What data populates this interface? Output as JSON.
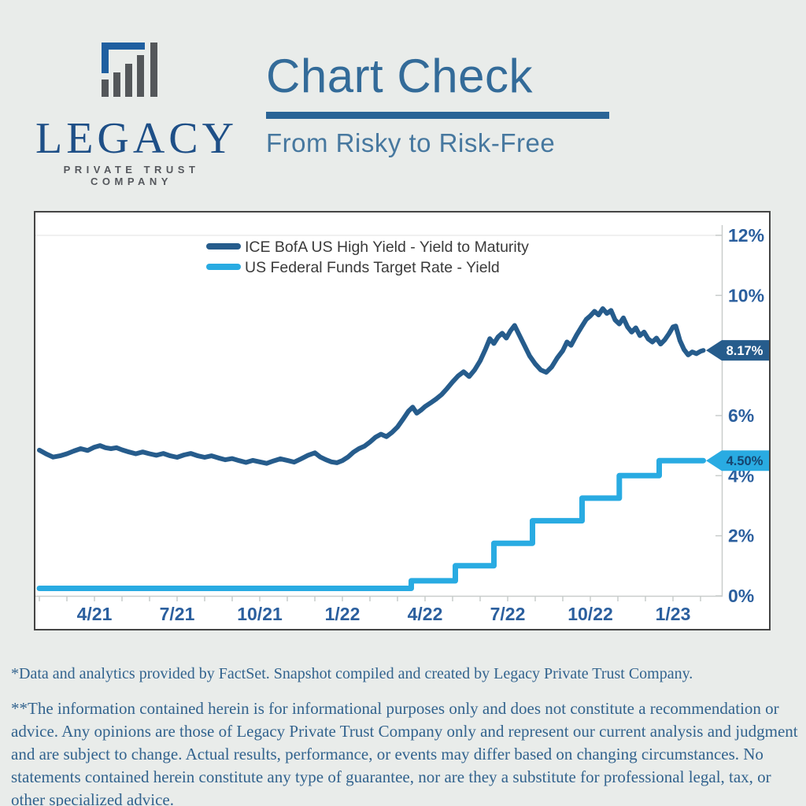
{
  "page": {
    "background": "#e9ecea"
  },
  "brand": {
    "company": "LEGACY",
    "tagline": "PRIVATE TRUST COMPANY",
    "colors": {
      "logo_blue": "#1f5fa0",
      "logo_gray": "#54575a",
      "wordmark_blue": "#1e4f87",
      "tagline_gray": "#55585d"
    }
  },
  "header": {
    "title": "Chart Check",
    "subtitle": "From Risky to Risk-Free",
    "title_color": "#336b99",
    "rule_color": "#2a6496",
    "subtitle_color": "#47789f"
  },
  "chart_data": {
    "type": "line",
    "title": "",
    "grid": false,
    "legend_position": "top-center-inside",
    "axis_label_color": "#2b5f9e",
    "axis_line_color": "#c9cdcc",
    "legend_text_color": "#3a3a3a",
    "x_axis": {
      "unit": "months since 2021-02-01",
      "range": [
        0,
        24.8
      ],
      "major_ticks": [
        {
          "t": 2,
          "label": "4/21"
        },
        {
          "t": 5,
          "label": "7/21"
        },
        {
          "t": 8,
          "label": "10/21"
        },
        {
          "t": 11,
          "label": "1/22"
        },
        {
          "t": 14,
          "label": "4/22"
        },
        {
          "t": 17,
          "label": "7/22"
        },
        {
          "t": 20,
          "label": "10/22"
        },
        {
          "t": 23,
          "label": "1/23"
        }
      ],
      "minor_tick_every_months": 1
    },
    "y_axis": {
      "range": [
        0,
        12.3
      ],
      "tick_values": [
        0,
        2,
        4,
        6,
        8,
        10,
        12
      ],
      "tick_labels": [
        "0%",
        "2%",
        "4%",
        "6%",
        "",
        "10%",
        "12%"
      ],
      "note": "8% label hidden behind the 8.17% callout"
    },
    "series": [
      {
        "name": "ICE BofA US High Yield - Yield to Maturity",
        "color": "#265c8c",
        "stroke_width": 6,
        "points": [
          [
            0,
            4.85
          ],
          [
            0.25,
            4.72
          ],
          [
            0.5,
            4.62
          ],
          [
            0.75,
            4.66
          ],
          [
            1,
            4.73
          ],
          [
            1.25,
            4.82
          ],
          [
            1.5,
            4.9
          ],
          [
            1.75,
            4.84
          ],
          [
            2,
            4.95
          ],
          [
            2.2,
            5.0
          ],
          [
            2.4,
            4.93
          ],
          [
            2.6,
            4.9
          ],
          [
            2.8,
            4.93
          ],
          [
            3,
            4.86
          ],
          [
            3.25,
            4.79
          ],
          [
            3.5,
            4.73
          ],
          [
            3.75,
            4.79
          ],
          [
            4,
            4.73
          ],
          [
            4.25,
            4.68
          ],
          [
            4.5,
            4.74
          ],
          [
            4.75,
            4.66
          ],
          [
            5,
            4.61
          ],
          [
            5.25,
            4.69
          ],
          [
            5.5,
            4.74
          ],
          [
            5.75,
            4.66
          ],
          [
            6,
            4.61
          ],
          [
            6.25,
            4.66
          ],
          [
            6.5,
            4.59
          ],
          [
            6.75,
            4.53
          ],
          [
            7,
            4.57
          ],
          [
            7.25,
            4.5
          ],
          [
            7.5,
            4.44
          ],
          [
            7.75,
            4.51
          ],
          [
            8,
            4.46
          ],
          [
            8.25,
            4.41
          ],
          [
            8.5,
            4.49
          ],
          [
            8.75,
            4.56
          ],
          [
            9,
            4.51
          ],
          [
            9.25,
            4.45
          ],
          [
            9.5,
            4.56
          ],
          [
            9.75,
            4.68
          ],
          [
            10,
            4.76
          ],
          [
            10.2,
            4.62
          ],
          [
            10.4,
            4.53
          ],
          [
            10.6,
            4.46
          ],
          [
            10.8,
            4.43
          ],
          [
            11,
            4.5
          ],
          [
            11.2,
            4.62
          ],
          [
            11.4,
            4.78
          ],
          [
            11.6,
            4.9
          ],
          [
            11.8,
            4.98
          ],
          [
            12,
            5.12
          ],
          [
            12.2,
            5.28
          ],
          [
            12.4,
            5.38
          ],
          [
            12.6,
            5.3
          ],
          [
            12.8,
            5.44
          ],
          [
            13,
            5.62
          ],
          [
            13.2,
            5.88
          ],
          [
            13.4,
            6.15
          ],
          [
            13.55,
            6.28
          ],
          [
            13.7,
            6.08
          ],
          [
            13.85,
            6.18
          ],
          [
            14,
            6.3
          ],
          [
            14.2,
            6.42
          ],
          [
            14.4,
            6.55
          ],
          [
            14.6,
            6.7
          ],
          [
            14.8,
            6.9
          ],
          [
            15,
            7.12
          ],
          [
            15.2,
            7.32
          ],
          [
            15.4,
            7.46
          ],
          [
            15.6,
            7.3
          ],
          [
            15.8,
            7.52
          ],
          [
            16,
            7.82
          ],
          [
            16.2,
            8.22
          ],
          [
            16.35,
            8.56
          ],
          [
            16.5,
            8.4
          ],
          [
            16.65,
            8.62
          ],
          [
            16.8,
            8.74
          ],
          [
            16.95,
            8.58
          ],
          [
            17.1,
            8.82
          ],
          [
            17.25,
            9.0
          ],
          [
            17.4,
            8.72
          ],
          [
            17.6,
            8.35
          ],
          [
            17.8,
            7.98
          ],
          [
            18,
            7.72
          ],
          [
            18.2,
            7.52
          ],
          [
            18.4,
            7.44
          ],
          [
            18.6,
            7.62
          ],
          [
            18.8,
            7.92
          ],
          [
            19,
            8.16
          ],
          [
            19.15,
            8.45
          ],
          [
            19.3,
            8.34
          ],
          [
            19.5,
            8.68
          ],
          [
            19.7,
            8.98
          ],
          [
            19.85,
            9.2
          ],
          [
            20,
            9.32
          ],
          [
            20.15,
            9.47
          ],
          [
            20.3,
            9.35
          ],
          [
            20.45,
            9.56
          ],
          [
            20.6,
            9.4
          ],
          [
            20.75,
            9.5
          ],
          [
            20.9,
            9.18
          ],
          [
            21.05,
            9.05
          ],
          [
            21.2,
            9.25
          ],
          [
            21.35,
            8.95
          ],
          [
            21.5,
            8.78
          ],
          [
            21.65,
            8.92
          ],
          [
            21.8,
            8.66
          ],
          [
            21.95,
            8.78
          ],
          [
            22.1,
            8.55
          ],
          [
            22.25,
            8.45
          ],
          [
            22.4,
            8.58
          ],
          [
            22.55,
            8.38
          ],
          [
            22.7,
            8.52
          ],
          [
            22.85,
            8.72
          ],
          [
            23.0,
            8.95
          ],
          [
            23.1,
            8.98
          ],
          [
            23.25,
            8.5
          ],
          [
            23.4,
            8.2
          ],
          [
            23.55,
            8.02
          ],
          [
            23.7,
            8.12
          ],
          [
            23.85,
            8.06
          ],
          [
            24.0,
            8.14
          ],
          [
            24.1,
            8.17
          ]
        ]
      },
      {
        "name": "US Federal Funds Target Rate - Yield",
        "color": "#29abe2",
        "stroke_width": 7,
        "points": [
          [
            0,
            0.25
          ],
          [
            13.5,
            0.25
          ],
          [
            13.5,
            0.5
          ],
          [
            15.1,
            0.5
          ],
          [
            15.1,
            1.0
          ],
          [
            16.5,
            1.0
          ],
          [
            16.5,
            1.75
          ],
          [
            17.9,
            1.75
          ],
          [
            17.9,
            2.5
          ],
          [
            19.7,
            2.5
          ],
          [
            19.7,
            3.25
          ],
          [
            21.05,
            3.25
          ],
          [
            21.05,
            4.0
          ],
          [
            22.5,
            4.0
          ],
          [
            22.5,
            4.5
          ],
          [
            24.1,
            4.5
          ]
        ]
      }
    ],
    "callouts": [
      {
        "label": "8.17%",
        "value": 8.17,
        "bg": "#265c8c",
        "fg": "#ffffff"
      },
      {
        "label": "4.50%",
        "value": 4.5,
        "bg": "#29abe2",
        "fg": "#17456f"
      }
    ]
  },
  "footnote": "*Data and analytics provided by FactSet. Snapshot compiled and created by Legacy Private Trust Company.",
  "disclaimer": "**The information contained herein is for informational purposes only and does not constitute a recommendation or advice. Any opinions are those of Legacy Private Trust Company only and represent our current analysis and judgment and are subject to change. Actual results, performance, or events may differ based on changing circumstances. No statements contained herein constitute any type of guarantee, nor are they a substitute for professional legal, tax, or other specialized advice."
}
